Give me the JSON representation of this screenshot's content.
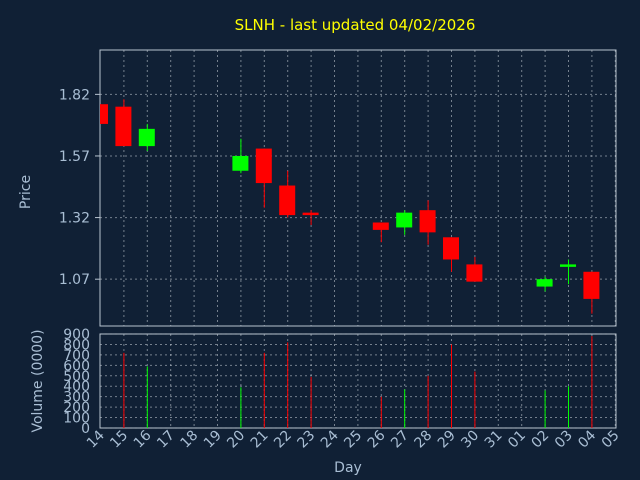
{
  "chart_data": {
    "type": "candlestick",
    "title": "SLNH - last updated 04/02/2026",
    "xlabel": "Day",
    "ylabel": "Price",
    "ylabel2": "Volume (0000)",
    "x_ticks": [
      "14",
      "15",
      "16",
      "17",
      "18",
      "19",
      "20",
      "21",
      "22",
      "23",
      "24",
      "25",
      "26",
      "27",
      "28",
      "29",
      "30",
      "31",
      "01",
      "02",
      "03",
      "04",
      "05"
    ],
    "y_ticks": [
      "1.07",
      "1.32",
      "1.57",
      "1.82"
    ],
    "vol_ticks": [
      "0",
      "100",
      "200",
      "300",
      "400",
      "500",
      "600",
      "700",
      "800",
      "900"
    ],
    "ylim": [
      0.88,
      2.0
    ],
    "vol_ylim": [
      0,
      900
    ],
    "grid": true,
    "up_color": "#00ff00",
    "down_color": "#ff0000",
    "candles": [
      {
        "i": 0,
        "open": 1.78,
        "close": 1.7,
        "high": 1.78,
        "low": 1.7,
        "vol": 0
      },
      {
        "i": 1,
        "open": 1.77,
        "close": 1.61,
        "high": 1.8,
        "low": 1.61,
        "vol": 720
      },
      {
        "i": 2,
        "open": 1.61,
        "close": 1.68,
        "high": 1.7,
        "low": 1.59,
        "vol": 590
      },
      {
        "i": 6,
        "open": 1.51,
        "close": 1.57,
        "high": 1.64,
        "low": 1.5,
        "vol": 390
      },
      {
        "i": 7,
        "open": 1.6,
        "close": 1.46,
        "high": 1.6,
        "low": 1.36,
        "vol": 720
      },
      {
        "i": 8,
        "open": 1.45,
        "close": 1.33,
        "high": 1.51,
        "low": 1.32,
        "vol": 820
      },
      {
        "i": 9,
        "open": 1.34,
        "close": 1.33,
        "high": 1.35,
        "low": 1.29,
        "vol": 490
      },
      {
        "i": 12,
        "open": 1.3,
        "close": 1.27,
        "high": 1.3,
        "low": 1.22,
        "vol": 300
      },
      {
        "i": 13,
        "open": 1.28,
        "close": 1.34,
        "high": 1.35,
        "low": 1.25,
        "vol": 370
      },
      {
        "i": 14,
        "open": 1.35,
        "close": 1.26,
        "high": 1.39,
        "low": 1.21,
        "vol": 500
      },
      {
        "i": 15,
        "open": 1.24,
        "close": 1.15,
        "high": 1.24,
        "low": 1.1,
        "vol": 800
      },
      {
        "i": 16,
        "open": 1.13,
        "close": 1.06,
        "high": 1.16,
        "low": 1.06,
        "vol": 540
      },
      {
        "i": 19,
        "open": 1.04,
        "close": 1.07,
        "high": 1.08,
        "low": 1.02,
        "vol": 360
      },
      {
        "i": 20,
        "open": 1.12,
        "close": 1.13,
        "high": 1.15,
        "low": 1.05,
        "vol": 400
      },
      {
        "i": 21,
        "open": 1.1,
        "close": 0.99,
        "high": 1.1,
        "low": 0.93,
        "vol": 880
      }
    ]
  }
}
